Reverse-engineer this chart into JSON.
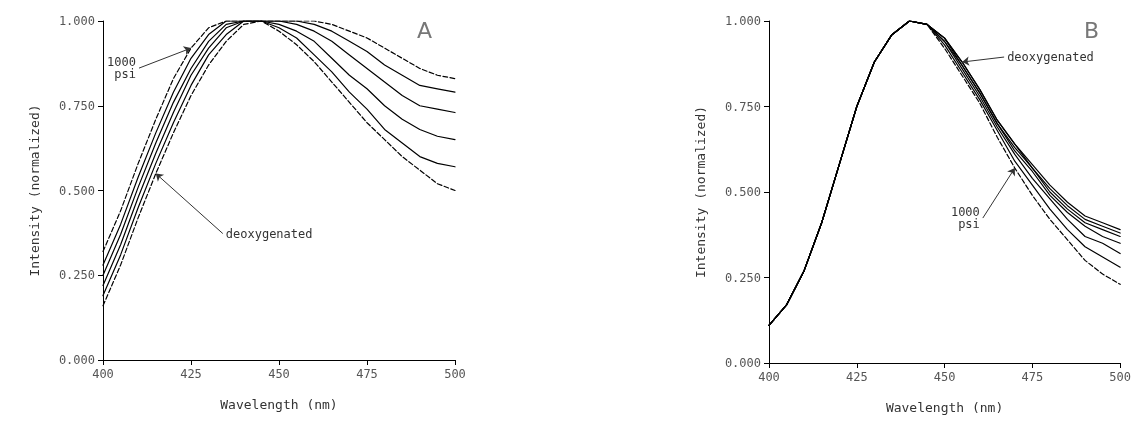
{
  "chart_data": [
    {
      "type": "line",
      "title": "A",
      "xlabel": "Wavelength (nm)",
      "ylabel": "Intensity (normalized)",
      "x": [
        400,
        405,
        410,
        415,
        420,
        425,
        430,
        435,
        440,
        445,
        450,
        455,
        460,
        465,
        470,
        475,
        480,
        485,
        490,
        495,
        500
      ],
      "series": [
        {
          "color": "#000000",
          "line_style": "dashed",
          "values": [
            0.16,
            0.28,
            0.42,
            0.55,
            0.67,
            0.78,
            0.87,
            0.94,
            0.99,
            1.0,
            0.97,
            0.93,
            0.88,
            0.82,
            0.76,
            0.7,
            0.65,
            0.6,
            0.56,
            0.52,
            0.5
          ]
        },
        {
          "color": "#000000",
          "line_style": "solid",
          "values": [
            0.19,
            0.31,
            0.45,
            0.58,
            0.7,
            0.81,
            0.9,
            0.96,
            1.0,
            1.0,
            0.98,
            0.95,
            0.9,
            0.85,
            0.79,
            0.74,
            0.68,
            0.64,
            0.6,
            0.58,
            0.57
          ]
        },
        {
          "color": "#000000",
          "line_style": "solid",
          "values": [
            0.22,
            0.34,
            0.48,
            0.61,
            0.73,
            0.84,
            0.92,
            0.98,
            1.0,
            1.0,
            0.99,
            0.97,
            0.94,
            0.89,
            0.84,
            0.8,
            0.75,
            0.71,
            0.68,
            0.66,
            0.65
          ]
        },
        {
          "color": "#000000",
          "line_style": "solid",
          "values": [
            0.25,
            0.37,
            0.51,
            0.64,
            0.76,
            0.86,
            0.94,
            0.99,
            1.0,
            1.0,
            1.0,
            0.99,
            0.97,
            0.94,
            0.9,
            0.86,
            0.82,
            0.78,
            0.75,
            0.74,
            0.73
          ]
        },
        {
          "color": "#000000",
          "line_style": "solid",
          "values": [
            0.28,
            0.4,
            0.54,
            0.67,
            0.79,
            0.89,
            0.96,
            1.0,
            1.0,
            1.0,
            1.0,
            1.0,
            0.99,
            0.97,
            0.94,
            0.91,
            0.87,
            0.84,
            0.81,
            0.8,
            0.79
          ]
        },
        {
          "color": "#000000",
          "line_style": "dashed",
          "values": [
            0.32,
            0.44,
            0.58,
            0.71,
            0.83,
            0.92,
            0.98,
            1.0,
            1.0,
            1.0,
            1.0,
            1.0,
            1.0,
            0.99,
            0.97,
            0.95,
            0.92,
            0.89,
            0.86,
            0.84,
            0.83
          ]
        }
      ],
      "annotations": [
        {
          "text": "1000\npsi",
          "x": 425,
          "y": 0.92
        },
        {
          "text": "deoxygenated",
          "x": 415,
          "y": 0.55
        }
      ],
      "xlim": [
        400,
        500
      ],
      "xticks": [
        400,
        425,
        450,
        475,
        500
      ],
      "ylim": [
        0,
        1
      ],
      "yticks": [
        {
          "value": 0,
          "label": "0.000"
        },
        {
          "value": 0.25,
          "label": "0.250"
        },
        {
          "value": 0.5,
          "label": "0.500"
        },
        {
          "value": 0.75,
          "label": "0.750"
        },
        {
          "value": 1,
          "label": "1.000"
        }
      ],
      "grid": false,
      "marker": "none"
    },
    {
      "type": "line",
      "title": "B",
      "xlabel": "Wavelength (nm)",
      "ylabel": "Intensity (normalized)",
      "x": [
        400,
        405,
        410,
        415,
        420,
        425,
        430,
        435,
        440,
        445,
        450,
        455,
        460,
        465,
        470,
        475,
        480,
        485,
        490,
        495,
        500
      ],
      "series": [
        {
          "color": "#000000",
          "line_style": "solid",
          "values": [
            0.11,
            0.17,
            0.27,
            0.41,
            0.58,
            0.75,
            0.88,
            0.96,
            1.0,
            0.99,
            0.95,
            0.88,
            0.8,
            0.71,
            0.64,
            0.58,
            0.52,
            0.47,
            0.43,
            0.41,
            0.39
          ]
        },
        {
          "color": "#000000",
          "line_style": "solid",
          "values": [
            0.11,
            0.17,
            0.27,
            0.41,
            0.58,
            0.75,
            0.88,
            0.96,
            1.0,
            0.99,
            0.95,
            0.88,
            0.8,
            0.71,
            0.64,
            0.57,
            0.51,
            0.46,
            0.42,
            0.4,
            0.38
          ]
        },
        {
          "color": "#000000",
          "line_style": "solid",
          "values": [
            0.11,
            0.17,
            0.27,
            0.41,
            0.58,
            0.75,
            0.88,
            0.96,
            1.0,
            0.99,
            0.95,
            0.87,
            0.79,
            0.7,
            0.63,
            0.57,
            0.5,
            0.45,
            0.41,
            0.39,
            0.37
          ]
        },
        {
          "color": "#000000",
          "line_style": "solid",
          "values": [
            0.11,
            0.17,
            0.27,
            0.41,
            0.58,
            0.75,
            0.88,
            0.96,
            1.0,
            0.99,
            0.94,
            0.87,
            0.79,
            0.7,
            0.62,
            0.56,
            0.49,
            0.44,
            0.4,
            0.37,
            0.35
          ]
        },
        {
          "color": "#000000",
          "line_style": "solid",
          "values": [
            0.11,
            0.17,
            0.27,
            0.41,
            0.58,
            0.75,
            0.88,
            0.96,
            1.0,
            0.99,
            0.94,
            0.86,
            0.78,
            0.69,
            0.61,
            0.54,
            0.48,
            0.42,
            0.37,
            0.35,
            0.32
          ]
        },
        {
          "color": "#000000",
          "line_style": "solid",
          "values": [
            0.11,
            0.17,
            0.27,
            0.41,
            0.58,
            0.75,
            0.88,
            0.96,
            1.0,
            0.99,
            0.93,
            0.85,
            0.77,
            0.68,
            0.59,
            0.52,
            0.45,
            0.39,
            0.34,
            0.31,
            0.28
          ]
        },
        {
          "color": "#000000",
          "line_style": "dashed",
          "values": [
            0.11,
            0.17,
            0.27,
            0.41,
            0.58,
            0.75,
            0.88,
            0.96,
            1.0,
            0.99,
            0.92,
            0.84,
            0.76,
            0.66,
            0.57,
            0.49,
            0.42,
            0.36,
            0.3,
            0.26,
            0.23
          ]
        }
      ],
      "annotations": [
        {
          "text": "deoxygenated",
          "x": 455,
          "y": 0.88
        },
        {
          "text": "1000\npsi",
          "x": 470,
          "y": 0.57
        }
      ],
      "xlim": [
        400,
        500
      ],
      "xticks": [
        400,
        425,
        450,
        475,
        500
      ],
      "ylim": [
        0,
        1
      ],
      "yticks": [
        {
          "value": 0,
          "label": "0.000"
        },
        {
          "value": 0.25,
          "label": "0.250"
        },
        {
          "value": 0.5,
          "label": "0.500"
        },
        {
          "value": 0.75,
          "label": "0.750"
        },
        {
          "value": 1,
          "label": "1.000"
        }
      ],
      "grid": false,
      "marker": "none"
    }
  ]
}
